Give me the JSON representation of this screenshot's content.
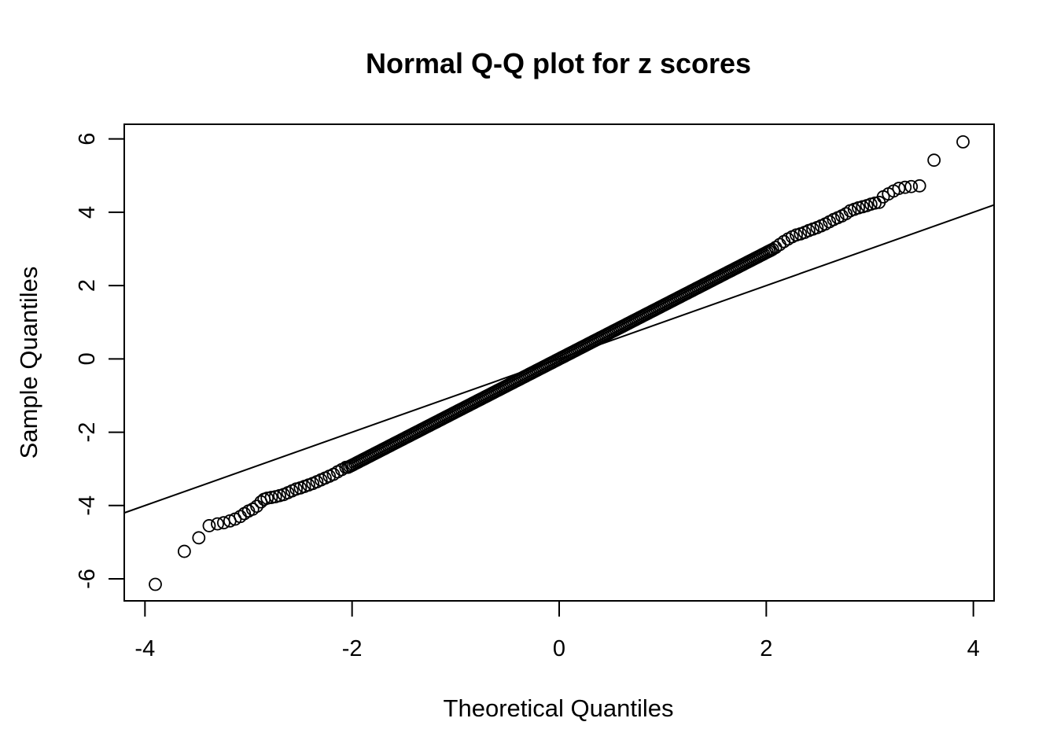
{
  "chart_data": {
    "type": "scatter",
    "title": "Normal Q-Q plot for z scores",
    "xlabel": "Theoretical Quantiles",
    "ylabel": "Sample Quantiles",
    "xlim": [
      -4.2,
      4.2
    ],
    "ylim": [
      -6.6,
      6.4
    ],
    "x_ticks": [
      -4,
      -2,
      0,
      2,
      4
    ],
    "x_tick_labels": [
      "-4",
      "-2",
      "0",
      "2",
      "4"
    ],
    "y_ticks": [
      -6,
      -4,
      -2,
      0,
      2,
      4,
      6
    ],
    "y_tick_labels": [
      "-6",
      "-4",
      "-2",
      "0",
      "2",
      "4",
      "6"
    ],
    "grid": false,
    "legend": "none",
    "marker": "open-circle",
    "point_color": "#000000",
    "reference_line": {
      "intercept": 0,
      "slope": 1.0
    },
    "points": [
      [
        -3.9,
        -6.15
      ],
      [
        -3.62,
        -5.25
      ],
      [
        -3.48,
        -4.88
      ],
      [
        -3.38,
        -4.55
      ],
      [
        -3.3,
        -4.5
      ],
      [
        -3.24,
        -4.47
      ],
      [
        -3.18,
        -4.42
      ],
      [
        -3.13,
        -4.37
      ],
      [
        -3.08,
        -4.3
      ],
      [
        -3.04,
        -4.22
      ],
      [
        -3.0,
        -4.15
      ],
      [
        -2.96,
        -4.1
      ],
      [
        -2.92,
        -4.02
      ],
      [
        -2.88,
        -3.9
      ],
      [
        -2.85,
        -3.83
      ],
      [
        -2.82,
        -3.8
      ],
      [
        -2.78,
        -3.78
      ],
      [
        -2.74,
        -3.76
      ],
      [
        -2.7,
        -3.73
      ],
      [
        -2.66,
        -3.7
      ],
      [
        -2.62,
        -3.65
      ],
      [
        -2.58,
        -3.6
      ],
      [
        -2.54,
        -3.55
      ],
      [
        -2.5,
        -3.52
      ],
      [
        -2.46,
        -3.48
      ],
      [
        -2.42,
        -3.44
      ],
      [
        -2.38,
        -3.4
      ],
      [
        -2.34,
        -3.35
      ],
      [
        -2.3,
        -3.3
      ],
      [
        -2.26,
        -3.25
      ],
      [
        -2.22,
        -3.2
      ],
      [
        -2.18,
        -3.15
      ],
      [
        -2.14,
        -3.08
      ],
      [
        -2.1,
        -3.02
      ],
      [
        -2.06,
        -2.96
      ],
      [
        3.9,
        5.92
      ],
      [
        3.62,
        5.42
      ],
      [
        3.48,
        4.72
      ],
      [
        3.4,
        4.7
      ],
      [
        3.34,
        4.68
      ],
      [
        3.28,
        4.65
      ],
      [
        3.23,
        4.58
      ],
      [
        3.18,
        4.5
      ],
      [
        3.13,
        4.42
      ],
      [
        3.09,
        4.27
      ],
      [
        3.05,
        4.25
      ],
      [
        3.01,
        4.22
      ],
      [
        2.97,
        4.18
      ],
      [
        2.93,
        4.15
      ],
      [
        2.89,
        4.12
      ],
      [
        2.85,
        4.08
      ],
      [
        2.81,
        4.04
      ],
      [
        2.77,
        3.96
      ],
      [
        2.73,
        3.9
      ],
      [
        2.69,
        3.85
      ],
      [
        2.65,
        3.8
      ],
      [
        2.61,
        3.74
      ],
      [
        2.57,
        3.68
      ],
      [
        2.53,
        3.63
      ],
      [
        2.49,
        3.58
      ],
      [
        2.45,
        3.54
      ],
      [
        2.41,
        3.5
      ],
      [
        2.37,
        3.45
      ],
      [
        2.33,
        3.41
      ],
      [
        2.29,
        3.38
      ],
      [
        2.25,
        3.33
      ],
      [
        2.21,
        3.27
      ],
      [
        2.17,
        3.2
      ],
      [
        2.13,
        3.12
      ],
      [
        2.09,
        3.04
      ]
    ],
    "bulk": {
      "x_from": -2.04,
      "x_to": 2.06,
      "slope": 1.45,
      "count": 240
    }
  }
}
